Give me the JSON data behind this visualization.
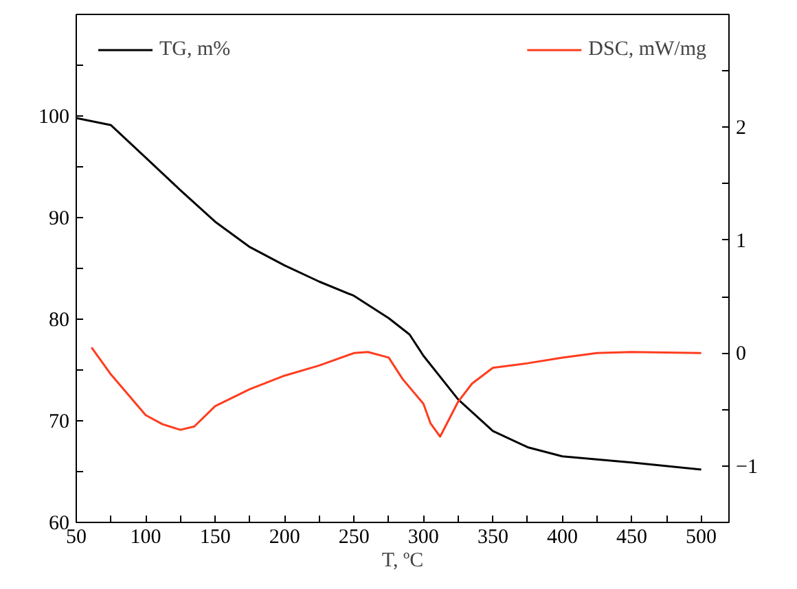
{
  "chart_data": {
    "type": "line",
    "xlabel": "T, ºC",
    "xlim": [
      50,
      520
    ],
    "xticks": [
      50,
      {
        "value": 75,
        "label": null
      },
      100,
      {
        "value": 125,
        "label": null
      },
      150,
      {
        "value": 175,
        "label": null
      },
      200,
      {
        "value": 225,
        "label": null
      },
      250,
      {
        "value": 275,
        "label": null
      },
      300,
      {
        "value": 325,
        "label": null
      },
      350,
      {
        "value": 375,
        "label": null
      },
      400,
      {
        "value": 425,
        "label": null
      },
      450,
      {
        "value": 475,
        "label": null
      },
      500
    ],
    "ylim": [
      60,
      110
    ],
    "yticks": [
      60,
      {
        "value": 65,
        "label": null
      },
      70,
      {
        "value": 75,
        "label": null
      },
      80,
      {
        "value": 85,
        "label": null
      },
      90,
      {
        "value": 95,
        "label": null
      },
      100,
      {
        "value": 105,
        "label": null
      }
    ],
    "y2lim": [
      -1.5,
      3
    ],
    "y2ticks": [
      {
        "value": -1,
        "label": "−1"
      },
      {
        "value": -0.5,
        "label": null
      },
      0,
      {
        "value": 0.5,
        "label": null
      },
      1,
      {
        "value": 1.5,
        "label": null
      },
      2,
      {
        "value": 2.5,
        "label": null
      }
    ],
    "legend": "top",
    "grid": false,
    "series": [
      {
        "name": "TG, m%",
        "color": "#000000",
        "x": [
          50,
          75,
          100,
          125,
          150,
          175,
          200,
          225,
          250,
          275,
          290,
          300,
          325,
          350,
          375,
          400,
          450,
          500
        ],
        "values": [
          99.8,
          99.1,
          95.9,
          92.7,
          89.6,
          87.1,
          85.3,
          83.7,
          82.3,
          80.1,
          78.5,
          76.4,
          72.1,
          69.0,
          67.4,
          66.5,
          65.9,
          65.2
        ]
      },
      {
        "name": "DSC, mW/mg",
        "color": "#ff3c1e",
        "axis": "y2",
        "x": [
          61,
          75,
          100,
          112,
          125,
          135,
          150,
          175,
          200,
          225,
          250,
          260,
          275,
          285,
          300,
          305,
          312,
          325,
          335,
          350,
          375,
          400,
          425,
          450,
          500
        ],
        "values": [
          0.05,
          -0.19,
          -0.55,
          -0.63,
          -0.68,
          -0.65,
          -0.47,
          -0.32,
          -0.2,
          -0.11,
          0.0,
          0.01,
          -0.04,
          -0.23,
          -0.45,
          -0.62,
          -0.74,
          -0.43,
          -0.27,
          -0.13,
          -0.09,
          -0.04,
          0.0,
          0.01,
          0.0
        ]
      }
    ]
  }
}
